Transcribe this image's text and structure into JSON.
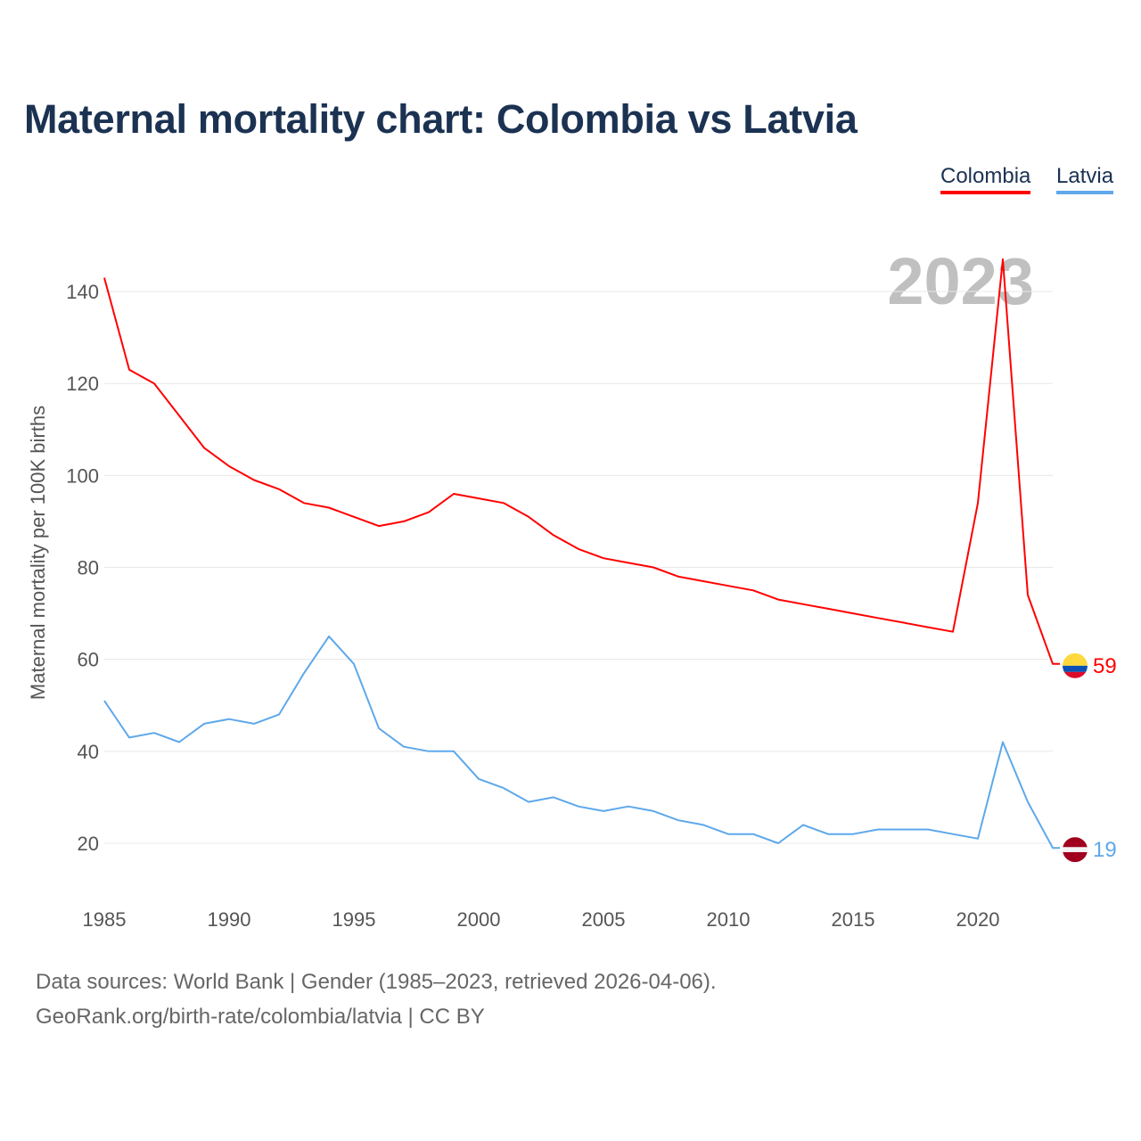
{
  "chart_data": {
    "type": "line",
    "title": "Maternal mortality chart: Colombia vs Latvia",
    "ylabel": "Maternal mortality per 100K births",
    "xlabel": "",
    "year_label": "2023",
    "x": [
      1985,
      1986,
      1987,
      1988,
      1989,
      1990,
      1991,
      1992,
      1993,
      1994,
      1995,
      1996,
      1997,
      1998,
      1999,
      2000,
      2001,
      2002,
      2003,
      2004,
      2005,
      2006,
      2007,
      2008,
      2009,
      2010,
      2011,
      2012,
      2013,
      2014,
      2015,
      2016,
      2017,
      2018,
      2019,
      2020,
      2021,
      2022,
      2023
    ],
    "xlim": [
      1985,
      2023
    ],
    "ylim": [
      10,
      150
    ],
    "xticks": [
      "1985",
      "1990",
      "1995",
      "2000",
      "2005",
      "2010",
      "2015",
      "2020"
    ],
    "yticks": [
      "20",
      "40",
      "60",
      "80",
      "100",
      "120",
      "140"
    ],
    "grid": true,
    "legend_position": "top-right",
    "series": [
      {
        "name": "Colombia",
        "color": "#ff0000",
        "end_label": "59",
        "values": [
          143,
          123,
          120,
          113,
          106,
          102,
          99,
          97,
          94,
          93,
          91,
          89,
          90,
          92,
          96,
          95,
          94,
          91,
          87,
          84,
          82,
          81,
          80,
          78,
          77,
          76,
          75,
          73,
          72,
          71,
          70,
          69,
          68,
          67,
          66,
          94,
          147,
          74,
          59
        ]
      },
      {
        "name": "Latvia",
        "color": "#5ea8ea",
        "end_label": "19",
        "values": [
          51,
          43,
          44,
          42,
          46,
          47,
          46,
          48,
          57,
          65,
          59,
          45,
          41,
          40,
          40,
          34,
          32,
          29,
          30,
          28,
          27,
          28,
          27,
          25,
          24,
          22,
          22,
          20,
          24,
          22,
          22,
          23,
          23,
          23,
          22,
          21,
          42,
          29,
          19
        ]
      }
    ]
  },
  "footer": {
    "line1": "Data sources: World Bank | Gender (1985–2023, retrieved 2026-04-06).",
    "line2": "GeoRank.org/birth-rate/colombia/latvia | CC BY"
  }
}
